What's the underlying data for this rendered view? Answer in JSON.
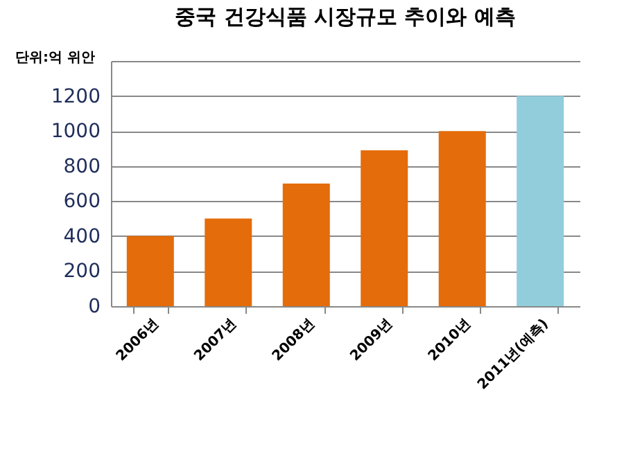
{
  "chart_data": {
    "type": "bar",
    "title": "중국 건강식품 시장규모 추이와 예측",
    "annotations": [
      "단위:억 위안"
    ],
    "categories": [
      "2006년",
      "2007년",
      "2008년",
      "2009년",
      "2010년",
      "2011년(예측)"
    ],
    "values": [
      400,
      500,
      700,
      890,
      1000,
      1200
    ],
    "colors": [
      "#e46c0a",
      "#e46c0a",
      "#e46c0a",
      "#e46c0a",
      "#e46c0a",
      "#92cddc"
    ],
    "ylim": [
      0,
      1400
    ],
    "yticks": [
      0,
      200,
      400,
      600,
      800,
      1000,
      1200,
      {
        "value": 1400,
        "label": null
      }
    ],
    "grid": "y"
  }
}
